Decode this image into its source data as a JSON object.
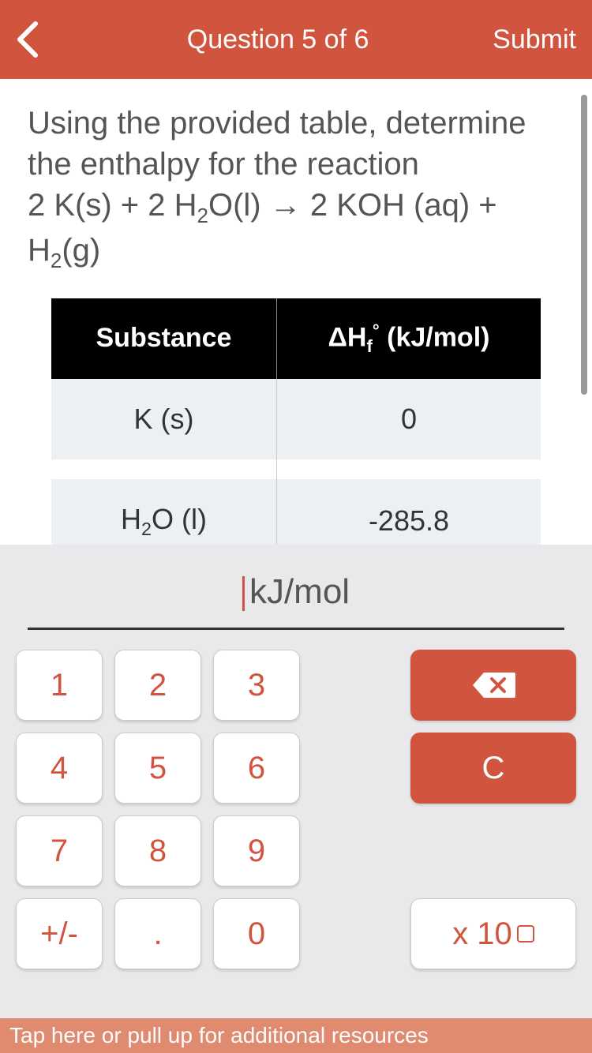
{
  "colors": {
    "accent": "#d1543f",
    "footer": "#e08a6f",
    "keypad_bg": "#e9e9eb",
    "table_header_bg": "#000000",
    "table_row_bg": "#ecf0f3"
  },
  "header": {
    "title": "Question 5 of 6",
    "submit": "Submit"
  },
  "question": {
    "line1": "Using the provided table, determine the enthalpy for the reaction",
    "equation_html": "2 K(s) + 2 H<span class='sub'>2</span>O(l) → 2 KOH (aq) + H<span class='sub'>2</span>(g)"
  },
  "table": {
    "col1": "Substance",
    "col2_html": "ΔH<span class='sub'>f</span><span class='sup'>°</span> (kJ/mol)",
    "rows": [
      {
        "substance": "K (s)",
        "value": "0"
      },
      {
        "substance_html": "H<span class='sub'>2</span>O (l)",
        "value": "-285.8"
      }
    ]
  },
  "input": {
    "unit": "kJ/mol",
    "value": ""
  },
  "keypad": {
    "k1": "1",
    "k2": "2",
    "k3": "3",
    "k4": "4",
    "k5": "5",
    "k6": "6",
    "k7": "7",
    "k8": "8",
    "k9": "9",
    "k0": "0",
    "dot": ".",
    "pm": "+/-",
    "clear": "C",
    "exp": "x 10"
  },
  "footer": {
    "text": "Tap here or pull up for additional resources"
  }
}
